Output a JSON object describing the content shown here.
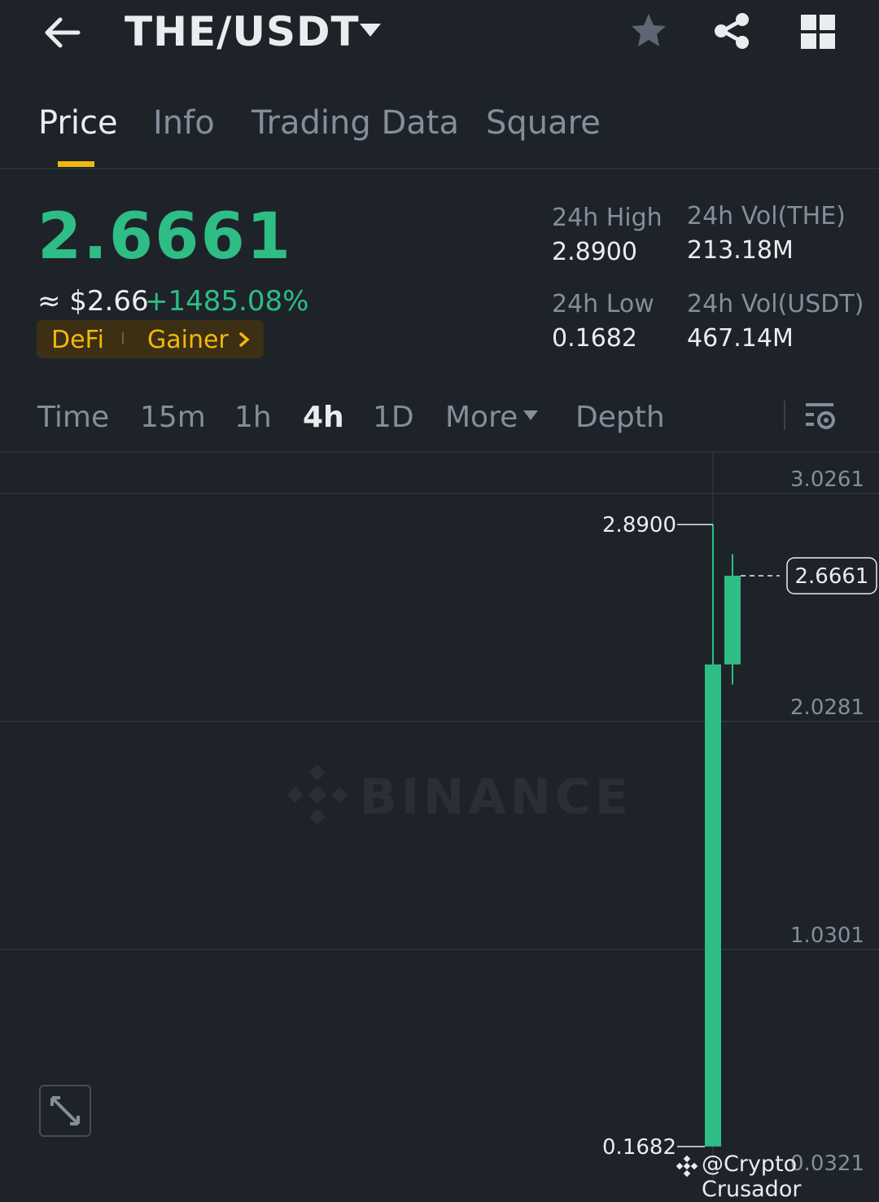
{
  "header": {
    "pair": "THE/USDT",
    "icons": [
      "back-arrow-icon",
      "caret-down-icon",
      "star-icon",
      "share-icon",
      "grid-icon"
    ]
  },
  "tabs": [
    {
      "label": "Price",
      "active": true
    },
    {
      "label": "Info",
      "active": false
    },
    {
      "label": "Trading Data",
      "active": false
    },
    {
      "label": "Square",
      "active": false
    }
  ],
  "ticker": {
    "last_price": "2.6661",
    "approx_usd": "≈ $2.66",
    "change_pct": "+1485.08%",
    "tags": [
      "DeFi",
      "Gainer"
    ],
    "stats": {
      "high_label": "24h High",
      "high_value": "2.8900",
      "low_label": "24h Low",
      "low_value": "0.1682",
      "vol_base_label": "24h Vol(THE)",
      "vol_base_value": "213.18M",
      "vol_quote_label": "24h Vol(USDT)",
      "vol_quote_value": "467.14M"
    }
  },
  "intervals": [
    {
      "label": "Time",
      "active": false
    },
    {
      "label": "15m",
      "active": false
    },
    {
      "label": "1h",
      "active": false
    },
    {
      "label": "4h",
      "active": true
    },
    {
      "label": "1D",
      "active": false
    },
    {
      "label": "More",
      "active": false
    },
    {
      "label": "Depth",
      "active": false
    }
  ],
  "chart": {
    "watermark": "BINANCE",
    "credit": "@Crypto Crusador",
    "colors": {
      "up": "#2ebd85",
      "grid": "#2b3139",
      "axis_text": "#848e9c",
      "accent": "#f0b90b"
    }
  },
  "chart_data": {
    "type": "candlestick",
    "y_ticks": [
      "3.0261",
      "2.0281",
      "1.0301",
      "0.0321"
    ],
    "ylim": [
      0.0321,
      3.0261
    ],
    "candles": [
      {
        "open": 0.1682,
        "close": 2.278,
        "high": 2.89,
        "low": 0.1682
      },
      {
        "open": 2.278,
        "close": 2.6661,
        "high": 2.76,
        "low": 2.19
      }
    ],
    "high_marker": "2.8900",
    "low_marker": "0.1682",
    "last_price": 2.6661,
    "last_price_label": "2.6661"
  }
}
